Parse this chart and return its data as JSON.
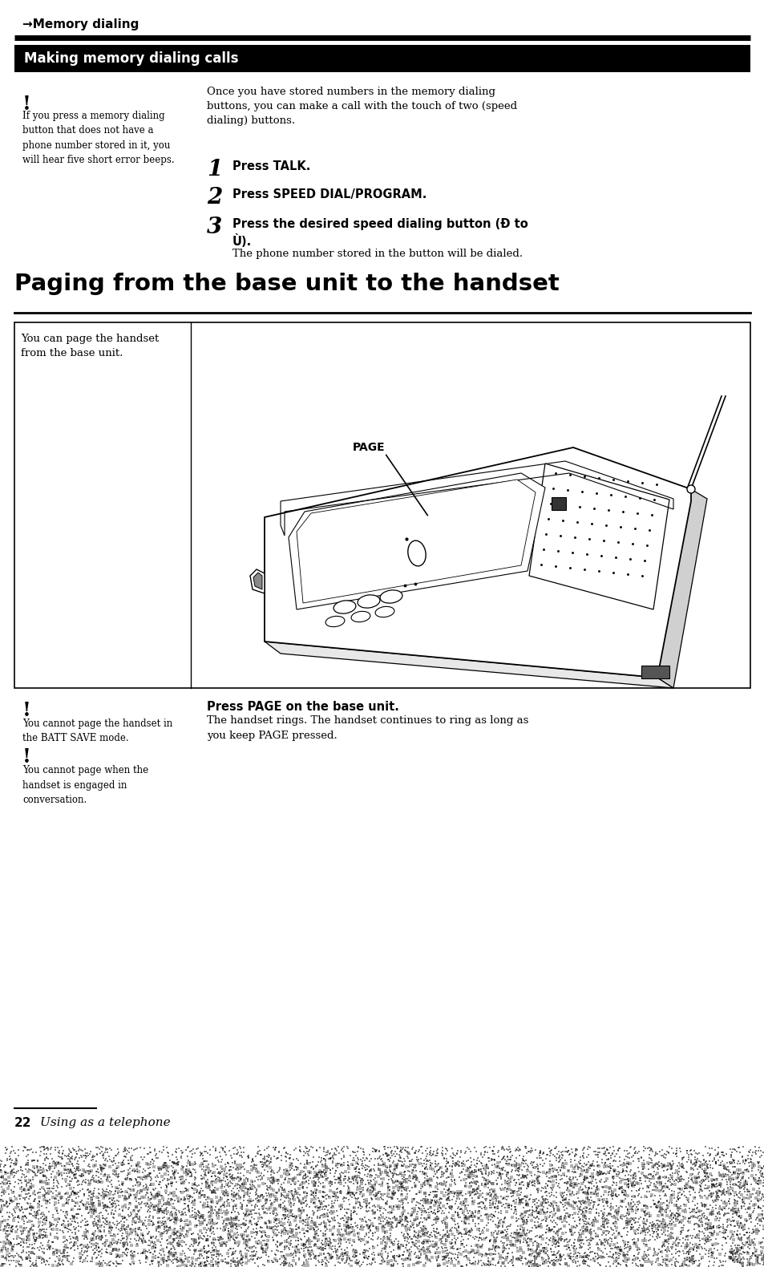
{
  "bg_color": "#ffffff",
  "page_width": 9.54,
  "page_height": 15.8,
  "dpi": 100,
  "header_arrow_text": "→Memory dialing",
  "section1_title": "Making memory dialing calls",
  "left_col_exclaim": "!",
  "left_col_text": "If you press a memory dialing\nbutton that does not have a\nphone number stored in it, you\nwill hear five short error beeps.",
  "right_intro": "Once you have stored numbers in the memory dialing\nbuttons, you can make a call with the touch of two (speed\ndialing) buttons.",
  "step1_num": "1",
  "step1_text": "Press TALK.",
  "step2_num": "2",
  "step2_text": "Press SPEED DIAL/PROGRAM.",
  "step3_num": "3",
  "step3_text_bold": "Press the desired speed dialing button (Ð to",
  "step3_text_bold2": "Ù).",
  "step3_text_normal": "The phone number stored in the button will be dialed.",
  "section2_title": "Paging from the base unit to the handset",
  "box_left_text": "You can page the handset\nfrom the base unit.",
  "box_page_label": "PAGE",
  "note1_exclaim": "!",
  "note1_text": "You cannot page the handset in\nthe BATT SAVE mode.",
  "note2_exclaim": "!",
  "note2_text": "You cannot page when the\nhandset is engaged in\nconversation.",
  "press_page_bold": "Press PAGE on the base unit.",
  "press_page_text": "The handset rings. The handset continues to ring as long as\nyou keep PAGE pressed.",
  "footer_page": "22",
  "footer_text": "Using as a telephone"
}
